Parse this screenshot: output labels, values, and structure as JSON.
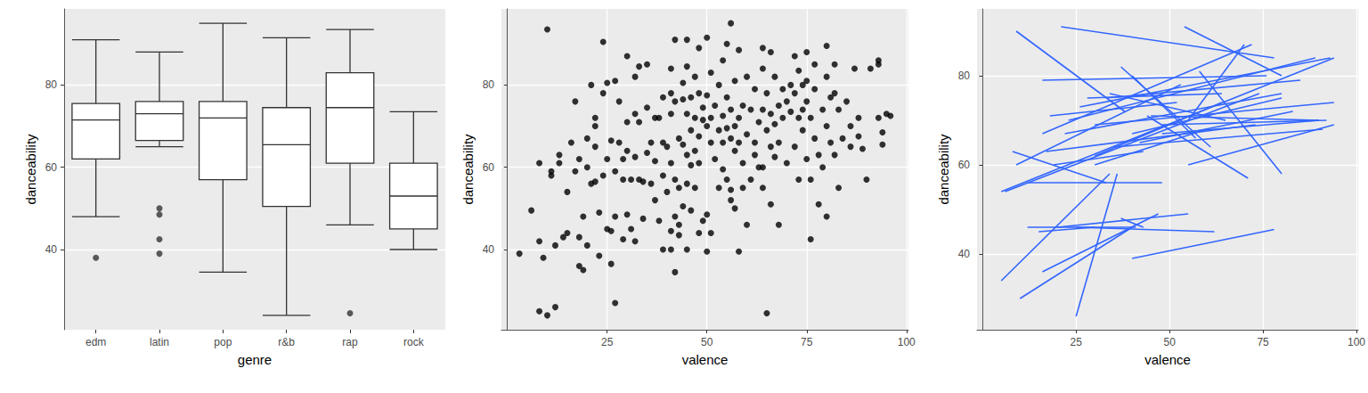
{
  "chart_data": [
    {
      "type": "boxplot",
      "x_label": "genre",
      "y_label": "danceability",
      "categories": [
        "edm",
        "latin",
        "pop",
        "r&b",
        "rap",
        "rock"
      ],
      "boxes": [
        {
          "min": 48,
          "q1": 62,
          "median": 71.5,
          "q3": 75.5,
          "max": 91
        },
        {
          "min": 65,
          "q1": 66.5,
          "median": 73,
          "q3": 76,
          "max": 88
        },
        {
          "min": 34.5,
          "q1": 57,
          "median": 72,
          "q3": 76,
          "max": 95
        },
        {
          "min": 24,
          "q1": 50.5,
          "median": 65.5,
          "q3": 74.5,
          "max": 91.5
        },
        {
          "min": 46,
          "q1": 61,
          "median": 74.5,
          "q3": 83,
          "max": 93.5
        },
        {
          "min": 40,
          "q1": 45,
          "median": 53,
          "q3": 61,
          "max": 73.5
        }
      ],
      "outliers": [
        [
          38
        ],
        [
          50,
          48.5,
          42.5,
          39
        ],
        [],
        [],
        [
          24.5
        ],
        []
      ],
      "ylim": [
        20.5,
        98.5
      ],
      "yticks": [
        40,
        60,
        80
      ],
      "grid": true,
      "color": "#333333"
    },
    {
      "type": "scatter",
      "x_label": "valence",
      "y_label": "danceability",
      "x": [
        3,
        6,
        8,
        8,
        9,
        8,
        10,
        10,
        11,
        11,
        12,
        12,
        13,
        13,
        14,
        15,
        15,
        16,
        17,
        17,
        18,
        18,
        18,
        19,
        19,
        20,
        20,
        20,
        21,
        21,
        22,
        22,
        22,
        22,
        23,
        23,
        24,
        24,
        24,
        25,
        25,
        25,
        26,
        26,
        26,
        27,
        27,
        27,
        27,
        28,
        28,
        29,
        29,
        29,
        30,
        30,
        30,
        30,
        31,
        31,
        32,
        32,
        32,
        32,
        33,
        33,
        33,
        34,
        34,
        35,
        35,
        35,
        36,
        36,
        37,
        37,
        37,
        38,
        38,
        39,
        39,
        39,
        39,
        40,
        40,
        41,
        41,
        41,
        41,
        41,
        41,
        42,
        42,
        42,
        42,
        42,
        43,
        43,
        43,
        43,
        44,
        44,
        44,
        44,
        45,
        45,
        45,
        45,
        45,
        45,
        46,
        46,
        46,
        46,
        47,
        47,
        47,
        47,
        48,
        48,
        48,
        48,
        48,
        49,
        49,
        49,
        50,
        50,
        50,
        50,
        50,
        51,
        51,
        51,
        51,
        52,
        52,
        53,
        53,
        53,
        54,
        54,
        54,
        54,
        55,
        55,
        55,
        55,
        56,
        56,
        56,
        56,
        56,
        57,
        57,
        57,
        57,
        58,
        58,
        58,
        58,
        59,
        59,
        59,
        60,
        60,
        60,
        61,
        61,
        62,
        62,
        62,
        63,
        63,
        64,
        64,
        64,
        64,
        64,
        65,
        65,
        65,
        66,
        66,
        66,
        66,
        67,
        67,
        67,
        68,
        68,
        68,
        69,
        69,
        70,
        70,
        71,
        71,
        72,
        72,
        72,
        73,
        73,
        73,
        74,
        74,
        74,
        75,
        75,
        75,
        75,
        76,
        76,
        76,
        77,
        77,
        77,
        78,
        78,
        79,
        79,
        80,
        80,
        80,
        80,
        81,
        81,
        82,
        82,
        82,
        83,
        83,
        84,
        85,
        86,
        86,
        87,
        88,
        88,
        89,
        90,
        91,
        93,
        93,
        93,
        94,
        94,
        95,
        96
      ],
      "values": [
        39,
        49.5,
        25,
        42,
        38,
        61,
        93.5,
        24,
        59,
        58,
        26,
        41,
        63,
        61,
        43,
        54,
        44,
        66,
        76,
        59,
        43,
        36,
        62,
        35,
        48,
        41,
        60,
        67,
        56,
        80,
        70,
        72,
        56.5,
        65,
        38.5,
        49,
        58,
        78,
        90.5,
        80.5,
        62,
        45,
        66.5,
        44.5,
        36.5,
        81,
        59,
        27,
        48,
        76,
        66,
        62,
        57,
        42.5,
        87,
        71,
        64,
        48.5,
        57,
        45,
        82,
        73,
        62.5,
        42,
        84.5,
        71,
        57,
        56.5,
        47.5,
        85,
        74.5,
        63.5,
        66,
        56,
        72,
        61.5,
        52,
        72,
        47,
        77,
        66,
        58,
        40,
        65,
        54,
        84,
        78,
        73,
        61,
        44.5,
        40,
        91,
        76,
        57,
        48,
        34.5,
        67,
        55,
        46,
        43.5,
        80.5,
        76.5,
        65.5,
        50.5,
        91,
        84.5,
        73,
        63,
        56,
        40,
        77,
        69,
        60.5,
        49.5,
        82,
        72,
        64,
        55,
        89,
        78,
        67.5,
        61,
        44,
        74.5,
        71.5,
        47,
        91.5,
        77.5,
        70,
        48.5,
        39.5,
        83,
        72,
        66,
        44,
        75,
        62,
        80,
        69,
        55,
        86,
        72.5,
        66,
        59.5,
        90,
        77,
        69.5,
        57,
        95,
        74,
        67,
        54.5,
        52,
        81,
        70,
        64,
        50,
        88.5,
        72,
        66,
        39.5,
        75,
        61,
        55,
        82,
        68,
        46,
        74,
        57,
        79,
        66,
        63,
        71,
        60,
        89,
        84,
        74,
        60,
        55,
        78,
        69,
        24.5,
        88,
        73,
        65,
        51,
        82,
        70.5,
        62.5,
        75,
        66,
        46,
        79,
        72,
        76,
        61,
        80,
        73.5,
        87,
        78,
        65,
        83.5,
        72,
        57,
        80,
        74,
        69,
        88,
        81,
        76,
        62,
        72,
        57,
        42.5,
        85,
        79,
        67,
        63,
        51,
        74,
        60,
        89.5,
        82,
        70,
        48,
        77,
        66,
        85,
        78,
        63,
        55,
        74,
        67,
        76,
        70,
        65,
        84,
        72,
        67.5,
        64.5,
        57,
        84,
        86,
        85,
        72,
        68.5,
        65.5,
        73,
        72.5
      ],
      "xlim": [
        -1.5,
        100.5
      ],
      "xticks": [
        25,
        50,
        75,
        100
      ],
      "ylim": [
        20.5,
        98.5
      ],
      "yticks": [
        40,
        60,
        80
      ],
      "grid": true,
      "color": "#000000"
    },
    {
      "type": "line",
      "x_label": "valence",
      "y_label": "danceability",
      "segments": [
        {
          "x": [
            9,
            38
          ],
          "values": [
            90,
            72
          ]
        },
        {
          "x": [
            21,
            78
          ],
          "values": [
            91,
            84
          ]
        },
        {
          "x": [
            54,
            80
          ],
          "values": [
            91,
            80
          ]
        },
        {
          "x": [
            16,
            76
          ],
          "values": [
            79,
            80
          ]
        },
        {
          "x": [
            16,
            72
          ],
          "values": [
            67,
            87
          ]
        },
        {
          "x": [
            9,
            53
          ],
          "values": [
            60,
            78
          ]
        },
        {
          "x": [
            6,
            74
          ],
          "values": [
            54,
            76
          ]
        },
        {
          "x": [
            5,
            94
          ],
          "values": [
            54,
            84
          ]
        },
        {
          "x": [
            23,
            89
          ],
          "values": [
            70,
            84
          ]
        },
        {
          "x": [
            33,
            85
          ],
          "values": [
            75,
            79
          ]
        },
        {
          "x": [
            34,
            65
          ],
          "values": [
            76,
            70
          ]
        },
        {
          "x": [
            37,
            61
          ],
          "values": [
            82,
            64
          ]
        },
        {
          "x": [
            40,
            80
          ],
          "values": [
            67,
            75
          ]
        },
        {
          "x": [
            40,
            57
          ],
          "values": [
            80,
            66
          ]
        },
        {
          "x": [
            22,
            80
          ],
          "values": [
            67,
            76
          ]
        },
        {
          "x": [
            26,
            93
          ],
          "values": [
            73,
            84
          ]
        },
        {
          "x": [
            30,
            94
          ],
          "values": [
            69,
            74
          ]
        },
        {
          "x": [
            17,
            73
          ],
          "values": [
            63,
            69
          ]
        },
        {
          "x": [
            48,
            92
          ],
          "values": [
            69,
            70
          ]
        },
        {
          "x": [
            44,
            71
          ],
          "values": [
            71,
            57
          ]
        },
        {
          "x": [
            19,
            43
          ],
          "values": [
            60,
            63
          ]
        },
        {
          "x": [
            8,
            33
          ],
          "values": [
            63,
            56
          ]
        },
        {
          "x": [
            12,
            48
          ],
          "values": [
            56,
            56
          ]
        },
        {
          "x": [
            15,
            30
          ],
          "values": [
            45,
            46
          ]
        },
        {
          "x": [
            12,
            41
          ],
          "values": [
            46,
            46
          ]
        },
        {
          "x": [
            20,
            55
          ],
          "values": [
            46,
            49
          ]
        },
        {
          "x": [
            25,
            62
          ],
          "values": [
            46,
            45
          ]
        },
        {
          "x": [
            40,
            78
          ],
          "values": [
            39,
            45.5
          ]
        },
        {
          "x": [
            10,
            40
          ],
          "values": [
            30,
            46
          ]
        },
        {
          "x": [
            16,
            47
          ],
          "values": [
            36,
            49
          ]
        },
        {
          "x": [
            5,
            34
          ],
          "values": [
            34,
            58
          ]
        },
        {
          "x": [
            25,
            36
          ],
          "values": [
            26,
            58
          ]
        },
        {
          "x": [
            37,
            43
          ],
          "values": [
            48,
            46
          ]
        },
        {
          "x": [
            30,
            64
          ],
          "values": [
            62,
            74
          ]
        },
        {
          "x": [
            35,
            91
          ],
          "values": [
            64,
            68
          ]
        },
        {
          "x": [
            45,
            90
          ],
          "values": [
            71,
            70
          ]
        },
        {
          "x": [
            42,
            83
          ],
          "values": [
            65,
            72
          ]
        },
        {
          "x": [
            55,
            70
          ],
          "values": [
            70,
            87
          ]
        },
        {
          "x": [
            58,
            80
          ],
          "values": [
            81,
            58
          ]
        },
        {
          "x": [
            55,
            94
          ],
          "values": [
            60,
            69
          ]
        },
        {
          "x": [
            48,
            90
          ],
          "values": [
            67,
            70
          ]
        },
        {
          "x": [
            30,
            60
          ],
          "values": [
            60,
            68
          ]
        },
        {
          "x": [
            18,
            52
          ],
          "values": [
            71,
            74
          ]
        },
        {
          "x": [
            28,
            64
          ],
          "values": [
            75,
            76
          ]
        }
      ],
      "xlim": [
        -1.5,
        100.5
      ],
      "xticks": [
        25,
        50,
        75,
        100
      ],
      "ylim": [
        23,
        95
      ],
      "yticks": [
        40,
        60,
        80
      ],
      "grid": true,
      "color": "#3366FF"
    }
  ]
}
